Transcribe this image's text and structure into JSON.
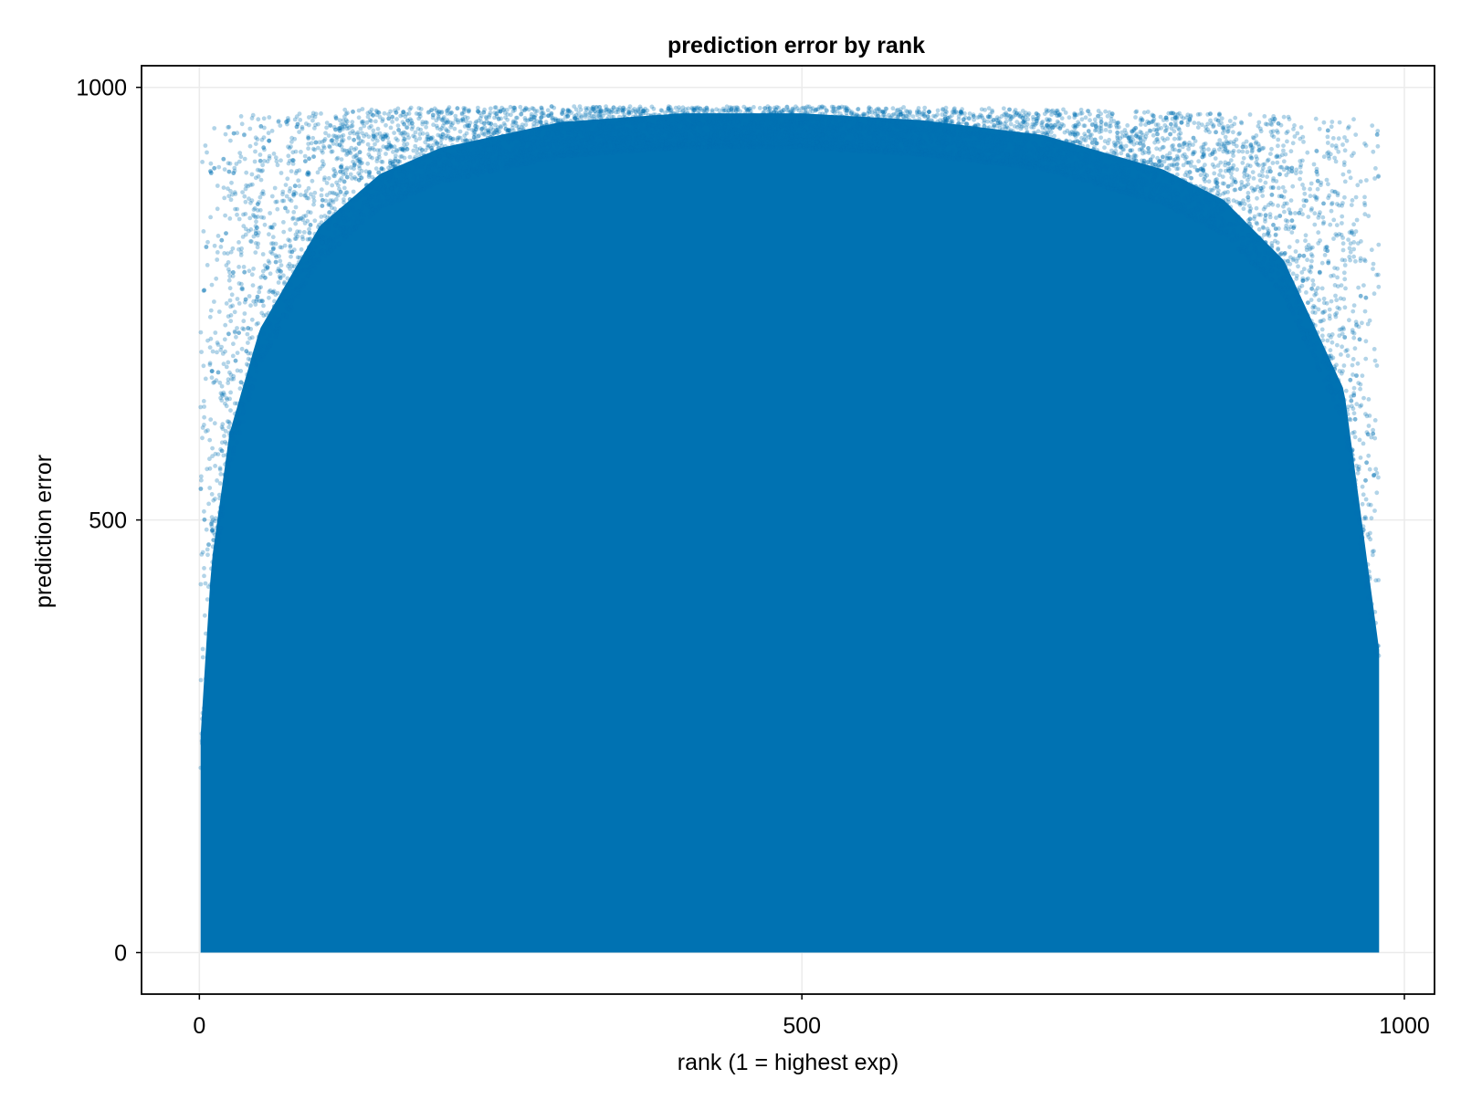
{
  "chart_data": {
    "type": "scatter",
    "title": "prediction error by rank",
    "xlabel": "rank (1 = highest exp)",
    "ylabel": "prediction error",
    "xlim": [
      -48,
      1025
    ],
    "ylim": [
      -48,
      1025
    ],
    "xticks": [
      0,
      500,
      1000
    ],
    "xtick_labels": [
      "0",
      "500",
      "1000"
    ],
    "yticks": [
      0,
      500,
      1000
    ],
    "ytick_labels": [
      "0",
      "500",
      "1000"
    ],
    "grid": true,
    "legend": "none",
    "marker_color": "#0072b2",
    "marker_alpha": 0.3,
    "series": [
      {
        "description_points_are_sampled_approximation": false,
        "rank_range": [
          1,
          979
        ],
        "values_upper_envelope": [
          [
            1,
            940
          ],
          [
            10,
            960
          ],
          [
            25,
            965
          ],
          [
            50,
            970
          ],
          [
            100,
            975
          ],
          [
            200,
            977
          ],
          [
            300,
            978
          ],
          [
            400,
            978
          ],
          [
            500,
            978
          ],
          [
            600,
            977
          ],
          [
            700,
            975
          ],
          [
            800,
            972
          ],
          [
            900,
            968
          ],
          [
            950,
            965
          ],
          [
            979,
            960
          ]
        ],
        "values_dense_band": [
          [
            1,
            250
          ],
          [
            10,
            450
          ],
          [
            25,
            600
          ],
          [
            50,
            720
          ],
          [
            100,
            840
          ],
          [
            150,
            900
          ],
          [
            200,
            930
          ],
          [
            300,
            960
          ],
          [
            400,
            970
          ],
          [
            500,
            970
          ],
          [
            600,
            962
          ],
          [
            700,
            945
          ],
          [
            800,
            905
          ],
          [
            850,
            870
          ],
          [
            900,
            800
          ],
          [
            950,
            650
          ],
          [
            979,
            350
          ]
        ]
      }
    ]
  }
}
